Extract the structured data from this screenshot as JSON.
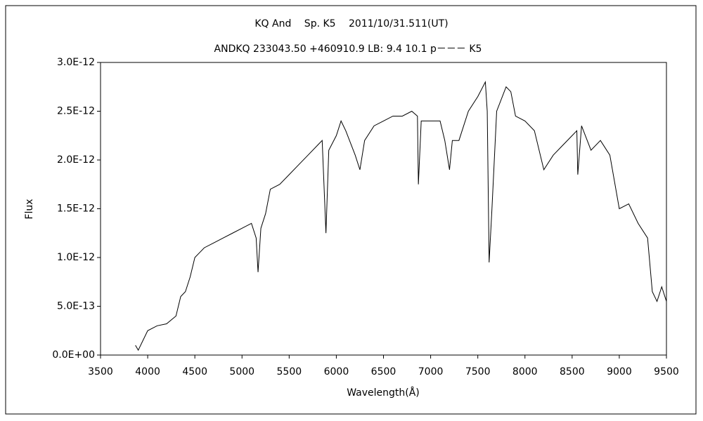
{
  "chart_data": {
    "type": "line",
    "title": "KQ And　 Sp. K5　 2011/10/31.511(UT)",
    "subtitle": "ANDKQ 233043.50 +460910.9 LB: 9.4 10.1 p－－－ K5",
    "x_label": "Wavelength(Å)",
    "y_label": "Flux",
    "xlim": [
      3500,
      9500
    ],
    "xticks": [
      3500,
      4000,
      4500,
      5000,
      5500,
      6000,
      6500,
      7000,
      7500,
      8000,
      8500,
      9000,
      9500
    ],
    "ylim": [
      0,
      3e-12
    ],
    "yticks": [
      {
        "value": 0,
        "label": "0.0E+00"
      },
      {
        "value": 5e-13,
        "label": "5.0E-13"
      },
      {
        "value": 1e-12,
        "label": "1.0E-12"
      },
      {
        "value": 1.5e-12,
        "label": "1.5E-12"
      },
      {
        "value": 2e-12,
        "label": "2.0E-12"
      },
      {
        "value": 2.5e-12,
        "label": "2.5E-12"
      },
      {
        "value": 3e-12,
        "label": "3.0E-12"
      }
    ],
    "grid": false,
    "x": [
      3870,
      3900,
      3950,
      4000,
      4100,
      4200,
      4300,
      4350,
      4400,
      4450,
      4500,
      4550,
      4600,
      4700,
      4800,
      4900,
      5000,
      5100,
      5150,
      5170,
      5200,
      5250,
      5300,
      5400,
      5500,
      5600,
      5700,
      5800,
      5850,
      5890,
      5920,
      6000,
      6050,
      6100,
      6200,
      6250,
      6300,
      6400,
      6500,
      6600,
      6700,
      6800,
      6860,
      6870,
      6900,
      7000,
      7100,
      7150,
      7200,
      7230,
      7300,
      7400,
      7500,
      7580,
      7600,
      7620,
      7650,
      7700,
      7800,
      7850,
      7900,
      8000,
      8100,
      8200,
      8300,
      8400,
      8500,
      8550,
      8560,
      8600,
      8700,
      8800,
      8900,
      9000,
      9100,
      9200,
      9300,
      9350,
      9400,
      9450,
      9500
    ],
    "series": [
      {
        "color": "#000000",
        "values": [
          1e-13,
          5e-14,
          1.5e-13,
          2.5e-13,
          3e-13,
          3.2e-13,
          4e-13,
          6e-13,
          6.5e-13,
          8e-13,
          1e-12,
          1.05e-12,
          1.1e-12,
          1.15e-12,
          1.2e-12,
          1.25e-12,
          1.3e-12,
          1.35e-12,
          1.2e-12,
          8.5e-13,
          1.3e-12,
          1.45e-12,
          1.7e-12,
          1.75e-12,
          1.85e-12,
          1.95e-12,
          2.05e-12,
          2.15e-12,
          2.2e-12,
          1.25e-12,
          2.1e-12,
          2.25e-12,
          2.4e-12,
          2.3e-12,
          2.05e-12,
          1.9e-12,
          2.2e-12,
          2.35e-12,
          2.4e-12,
          2.45e-12,
          2.45e-12,
          2.5e-12,
          2.45e-12,
          1.75e-12,
          2.4e-12,
          2.4e-12,
          2.4e-12,
          2.2e-12,
          1.9e-12,
          2.2e-12,
          2.2e-12,
          2.5e-12,
          2.65e-12,
          2.8e-12,
          2.5e-12,
          9.5e-13,
          1.5e-12,
          2.5e-12,
          2.75e-12,
          2.7e-12,
          2.45e-12,
          2.4e-12,
          2.3e-12,
          1.9e-12,
          2.05e-12,
          2.15e-12,
          2.25e-12,
          2.3e-12,
          1.85e-12,
          2.35e-12,
          2.1e-12,
          2.2e-12,
          2.05e-12,
          1.5e-12,
          1.55e-12,
          1.35e-12,
          1.2e-12,
          6.5e-13,
          5.5e-13,
          7e-13,
          5.5e-13
        ]
      }
    ]
  }
}
